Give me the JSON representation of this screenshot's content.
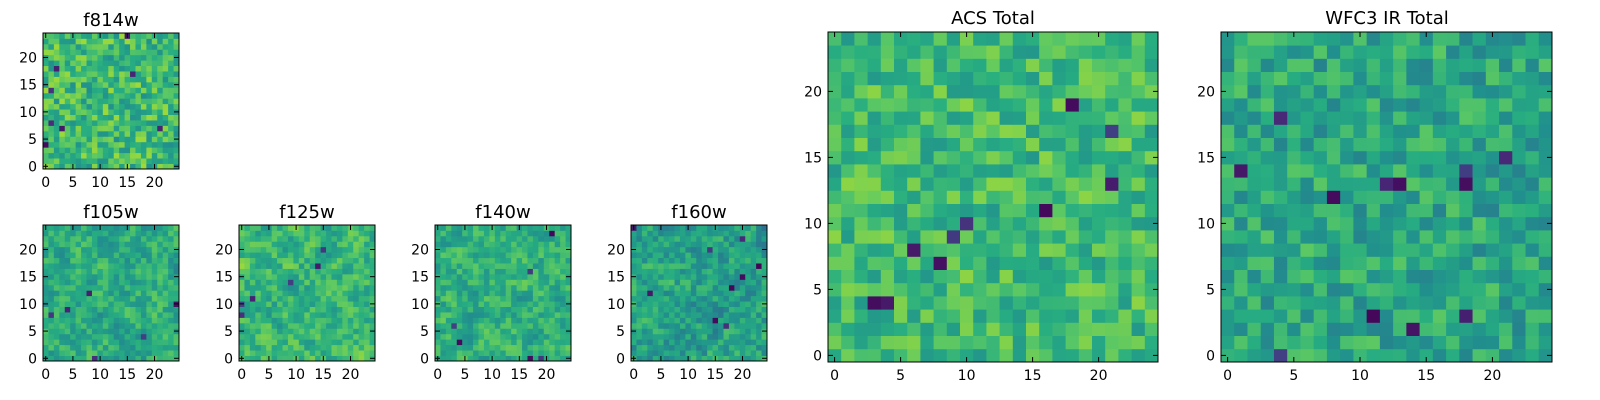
{
  "chart_data": [
    {
      "type": "heatmap",
      "title": "f814w",
      "grid_size": 25,
      "x_ticks": [
        0,
        5,
        10,
        15,
        20
      ],
      "y_ticks": [
        0,
        5,
        10,
        15,
        20
      ],
      "xlim": [
        -0.5,
        24.5
      ],
      "ylim": [
        -0.5,
        24.5
      ],
      "colormap": "viridis",
      "seed": 11,
      "mean": 0.68,
      "spread": 0.18,
      "dark_pixels": 8,
      "smooth": 0
    },
    {
      "type": "heatmap",
      "title": "f105w",
      "grid_size": 25,
      "x_ticks": [
        0,
        5,
        10,
        15,
        20
      ],
      "y_ticks": [
        0,
        5,
        10,
        15,
        20
      ],
      "xlim": [
        -0.5,
        24.5
      ],
      "ylim": [
        -0.5,
        24.5
      ],
      "colormap": "viridis",
      "seed": 23,
      "mean": 0.62,
      "spread": 0.22,
      "dark_pixels": 6,
      "smooth": 1
    },
    {
      "type": "heatmap",
      "title": "f125w",
      "grid_size": 25,
      "x_ticks": [
        0,
        5,
        10,
        15,
        20
      ],
      "y_ticks": [
        0,
        5,
        10,
        15,
        20
      ],
      "xlim": [
        -0.5,
        24.5
      ],
      "ylim": [
        -0.5,
        24.5
      ],
      "colormap": "viridis",
      "seed": 37,
      "mean": 0.66,
      "spread": 0.22,
      "dark_pixels": 6,
      "smooth": 1
    },
    {
      "type": "heatmap",
      "title": "f140w",
      "grid_size": 25,
      "x_ticks": [
        0,
        5,
        10,
        15,
        20
      ],
      "y_ticks": [
        0,
        5,
        10,
        15,
        20
      ],
      "xlim": [
        -0.5,
        24.5
      ],
      "ylim": [
        -0.5,
        24.5
      ],
      "colormap": "viridis",
      "seed": 41,
      "mean": 0.64,
      "spread": 0.22,
      "dark_pixels": 6,
      "smooth": 1
    },
    {
      "type": "heatmap",
      "title": "f160w",
      "grid_size": 25,
      "x_ticks": [
        0,
        5,
        10,
        15,
        20
      ],
      "y_ticks": [
        0,
        5,
        10,
        15,
        20
      ],
      "xlim": [
        -0.5,
        24.5
      ],
      "ylim": [
        -0.5,
        24.5
      ],
      "colormap": "viridis",
      "seed": 53,
      "mean": 0.58,
      "spread": 0.24,
      "dark_pixels": 9,
      "smooth": 1
    },
    {
      "type": "heatmap",
      "title": "ACS Total",
      "grid_size": 25,
      "x_ticks": [
        0,
        5,
        10,
        15,
        20
      ],
      "y_ticks": [
        0,
        5,
        10,
        15,
        20
      ],
      "xlim": [
        -0.5,
        24.5
      ],
      "ylim": [
        -0.5,
        24.5
      ],
      "colormap": "viridis",
      "seed": 67,
      "mean": 0.68,
      "spread": 0.15,
      "dark_pixels": 10,
      "smooth": 0
    },
    {
      "type": "heatmap",
      "title": "WFC3 IR Total",
      "grid_size": 25,
      "x_ticks": [
        0,
        5,
        10,
        15,
        20
      ],
      "y_ticks": [
        0,
        5,
        10,
        15,
        20
      ],
      "xlim": [
        -0.5,
        24.5
      ],
      "ylim": [
        -0.5,
        24.5
      ],
      "colormap": "viridis",
      "seed": 79,
      "mean": 0.6,
      "spread": 0.15,
      "dark_pixels": 12,
      "smooth": 0
    }
  ]
}
